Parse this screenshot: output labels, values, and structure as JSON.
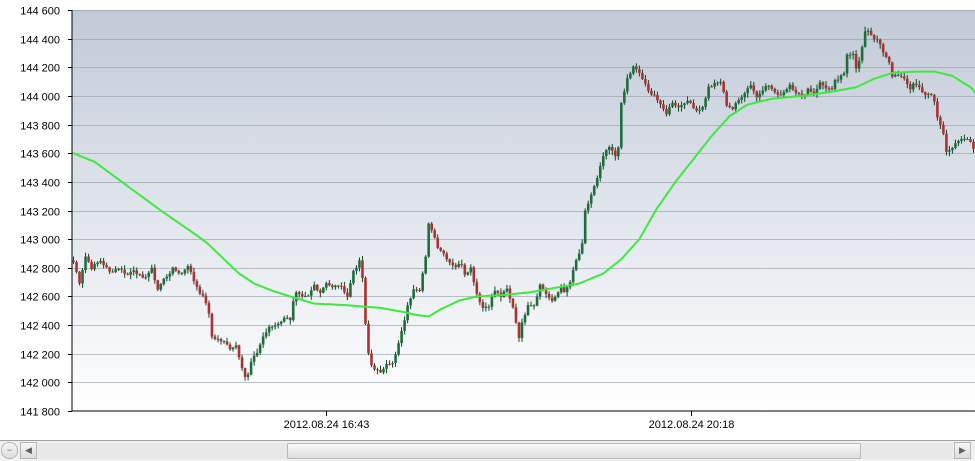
{
  "chart_data": {
    "type": "candlestick",
    "title": "",
    "xlabel": "",
    "ylabel": "",
    "ylim": [
      141800,
      144600
    ],
    "y_ticks": [
      141800,
      142000,
      142200,
      142400,
      142600,
      142800,
      143000,
      143200,
      143400,
      143600,
      143800,
      144000,
      144200,
      144400,
      144600
    ],
    "y_tick_labels": [
      "141 800",
      "142 000",
      "142 200",
      "142 400",
      "142 600",
      "142 800",
      "143 000",
      "143 200",
      "143 400",
      "143 600",
      "143 800",
      "144 000",
      "144 200",
      "144 400",
      "144 600"
    ],
    "x_tick_labels": [
      "2012.08.24 16:43",
      "2012.08.24 20:18"
    ],
    "grid": true,
    "colors": {
      "bull": "#1e6e3c",
      "bear": "#b03030",
      "wick": "#0a4a1e",
      "moving_average": "#3ee83e",
      "background_top": "#c2cad8",
      "background_bottom": "#ffffff",
      "grid": "#8a93a3"
    },
    "price_path": [
      [
        0,
        142840
      ],
      [
        2,
        142700
      ],
      [
        4,
        142880
      ],
      [
        6,
        142800
      ],
      [
        9,
        142850
      ],
      [
        12,
        142770
      ],
      [
        15,
        142800
      ],
      [
        18,
        142750
      ],
      [
        20,
        142790
      ],
      [
        23,
        142720
      ],
      [
        26,
        142790
      ],
      [
        28,
        142650
      ],
      [
        30,
        142720
      ],
      [
        33,
        142790
      ],
      [
        36,
        142760
      ],
      [
        38,
        142820
      ],
      [
        40,
        142710
      ],
      [
        42,
        142630
      ],
      [
        44,
        142560
      ],
      [
        45,
        142470
      ],
      [
        46,
        142320
      ],
      [
        48,
        142300
      ],
      [
        50,
        142280
      ],
      [
        52,
        142240
      ],
      [
        54,
        142260
      ],
      [
        56,
        142110
      ],
      [
        57,
        142040
      ],
      [
        58,
        142050
      ],
      [
        59,
        142140
      ],
      [
        61,
        142210
      ],
      [
        63,
        142320
      ],
      [
        65,
        142380
      ],
      [
        67,
        142400
      ],
      [
        69,
        142430
      ],
      [
        71,
        142460
      ],
      [
        72,
        142440
      ],
      [
        73,
        142560
      ],
      [
        74,
        142620
      ],
      [
        76,
        142590
      ],
      [
        78,
        142600
      ],
      [
        80,
        142680
      ],
      [
        82,
        142630
      ],
      [
        84,
        142700
      ],
      [
        86,
        142660
      ],
      [
        88,
        142680
      ],
      [
        90,
        142640
      ],
      [
        91,
        142600
      ],
      [
        93,
        142780
      ],
      [
        95,
        142840
      ],
      [
        96,
        142730
      ],
      [
        97,
        142400
      ],
      [
        98,
        142200
      ],
      [
        99,
        142120
      ],
      [
        100,
        142100
      ],
      [
        102,
        142060
      ],
      [
        104,
        142140
      ],
      [
        106,
        142130
      ],
      [
        107,
        142190
      ],
      [
        109,
        142350
      ],
      [
        111,
        142530
      ],
      [
        113,
        142660
      ],
      [
        115,
        142650
      ],
      [
        117,
        142870
      ],
      [
        118,
        143100
      ],
      [
        119,
        143070
      ],
      [
        121,
        142950
      ],
      [
        123,
        142900
      ],
      [
        125,
        142840
      ],
      [
        127,
        142810
      ],
      [
        129,
        142830
      ],
      [
        130,
        142760
      ],
      [
        132,
        142800
      ],
      [
        134,
        142620
      ],
      [
        136,
        142520
      ],
      [
        138,
        142540
      ],
      [
        140,
        142640
      ],
      [
        142,
        142600
      ],
      [
        144,
        142650
      ],
      [
        145,
        142580
      ],
      [
        146,
        142530
      ],
      [
        147,
        142420
      ],
      [
        148,
        142320
      ],
      [
        149,
        142410
      ],
      [
        151,
        142550
      ],
      [
        153,
        142540
      ],
      [
        155,
        142680
      ],
      [
        157,
        142620
      ],
      [
        159,
        142560
      ],
      [
        161,
        142630
      ],
      [
        162,
        142680
      ],
      [
        163,
        142620
      ],
      [
        165,
        142700
      ],
      [
        167,
        142850
      ],
      [
        168,
        142900
      ],
      [
        169,
        142960
      ],
      [
        170,
        143190
      ],
      [
        172,
        143310
      ],
      [
        174,
        143420
      ],
      [
        176,
        143580
      ],
      [
        178,
        143640
      ],
      [
        180,
        143580
      ],
      [
        181,
        143650
      ],
      [
        182,
        143940
      ],
      [
        184,
        144120
      ],
      [
        186,
        144200
      ],
      [
        188,
        144160
      ],
      [
        189,
        144120
      ],
      [
        191,
        144030
      ],
      [
        193,
        144010
      ],
      [
        195,
        143930
      ],
      [
        197,
        143880
      ],
      [
        199,
        143960
      ],
      [
        201,
        143920
      ],
      [
        203,
        143960
      ],
      [
        205,
        143950
      ],
      [
        207,
        143900
      ],
      [
        209,
        143920
      ],
      [
        211,
        144060
      ],
      [
        213,
        144080
      ],
      [
        215,
        144100
      ],
      [
        217,
        143940
      ],
      [
        219,
        143910
      ],
      [
        222,
        144000
      ],
      [
        225,
        144080
      ],
      [
        227,
        143990
      ],
      [
        230,
        144080
      ],
      [
        232,
        144050
      ],
      [
        234,
        144000
      ],
      [
        236,
        144030
      ],
      [
        238,
        144080
      ],
      [
        240,
        144030
      ],
      [
        242,
        143990
      ],
      [
        244,
        144050
      ],
      [
        246,
        144020
      ],
      [
        248,
        144090
      ],
      [
        250,
        144060
      ],
      [
        252,
        144040
      ],
      [
        253,
        144100
      ],
      [
        256,
        144150
      ],
      [
        257,
        144290
      ],
      [
        259,
        144300
      ],
      [
        260,
        144200
      ],
      [
        261,
        144240
      ],
      [
        263,
        144440
      ],
      [
        264,
        144460
      ],
      [
        266,
        144400
      ],
      [
        267,
        144400
      ],
      [
        269,
        144300
      ],
      [
        271,
        144230
      ],
      [
        272,
        144140
      ],
      [
        274,
        144150
      ],
      [
        276,
        144110
      ],
      [
        278,
        144050
      ],
      [
        279,
        144090
      ],
      [
        281,
        144060
      ],
      [
        283,
        144010
      ],
      [
        285,
        144000
      ],
      [
        286,
        143960
      ],
      [
        287,
        143850
      ],
      [
        289,
        143740
      ],
      [
        290,
        143620
      ],
      [
        292,
        143640
      ],
      [
        294,
        143680
      ],
      [
        296,
        143700
      ],
      [
        298,
        143680
      ],
      [
        299,
        143640
      ],
      [
        300,
        143580
      ]
    ],
    "moving_average": [
      [
        0,
        143600
      ],
      [
        7,
        143540
      ],
      [
        18,
        143370
      ],
      [
        29,
        143200
      ],
      [
        40,
        143040
      ],
      [
        44,
        142980
      ],
      [
        49,
        142880
      ],
      [
        55,
        142760
      ],
      [
        60,
        142690
      ],
      [
        66,
        142640
      ],
      [
        72,
        142600
      ],
      [
        80,
        142550
      ],
      [
        90,
        142540
      ],
      [
        102,
        142520
      ],
      [
        110,
        142490
      ],
      [
        114,
        142470
      ],
      [
        118,
        142460
      ],
      [
        122,
        142510
      ],
      [
        128,
        142570
      ],
      [
        134,
        142600
      ],
      [
        143,
        142610
      ],
      [
        152,
        142630
      ],
      [
        160,
        142660
      ],
      [
        168,
        142690
      ],
      [
        176,
        142760
      ],
      [
        182,
        142860
      ],
      [
        188,
        143000
      ],
      [
        194,
        143220
      ],
      [
        200,
        143400
      ],
      [
        206,
        143560
      ],
      [
        212,
        143720
      ],
      [
        218,
        143860
      ],
      [
        224,
        143940
      ],
      [
        232,
        143980
      ],
      [
        242,
        144000
      ],
      [
        252,
        144030
      ],
      [
        260,
        144060
      ],
      [
        266,
        144120
      ],
      [
        272,
        144160
      ],
      [
        280,
        144170
      ],
      [
        286,
        144170
      ],
      [
        292,
        144140
      ],
      [
        298,
        144060
      ],
      [
        300,
        144020
      ]
    ]
  },
  "scrollbar": {
    "reset_icon": "circle-dash-icon",
    "left_icon": "arrow-left-icon",
    "right_icon": "arrow-right-icon",
    "thumb_fraction": 0.628,
    "thumb_offset_fraction": 0.272
  }
}
